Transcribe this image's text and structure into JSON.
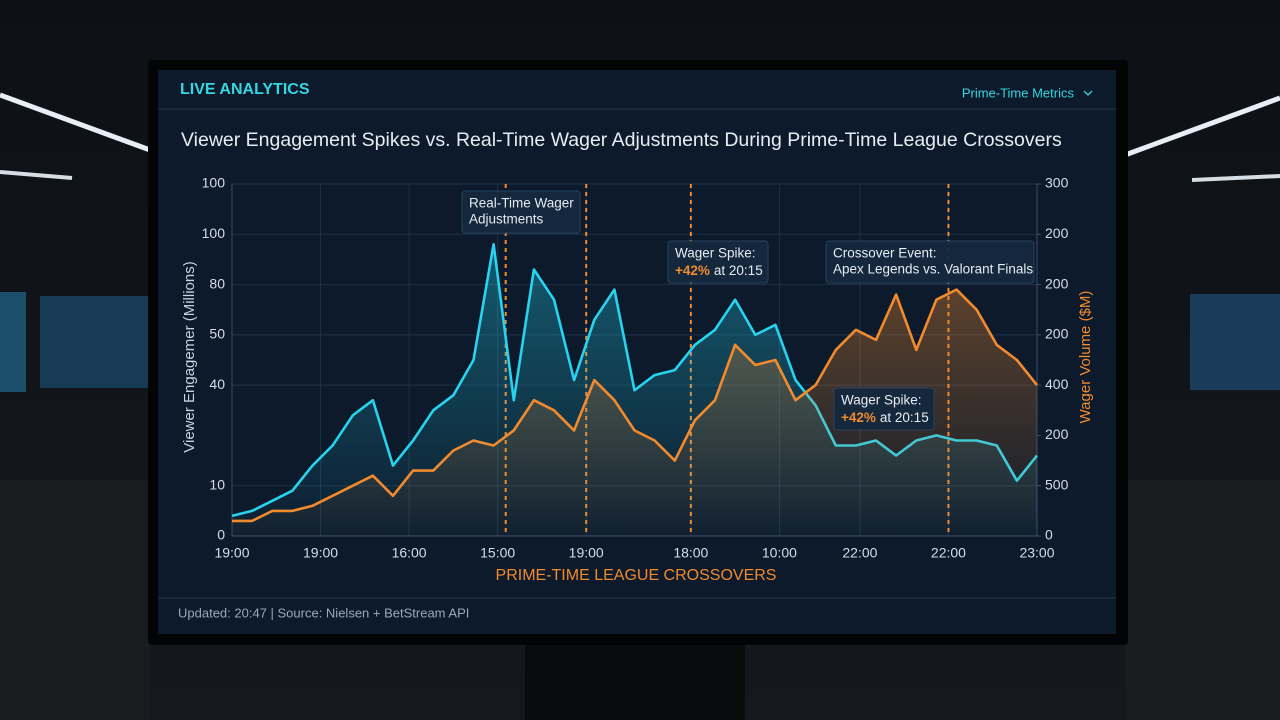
{
  "header": {
    "section": "LIVE ANALYTICS",
    "menu": "Prime-Time Metrics"
  },
  "chart_data": {
    "type": "line",
    "title": "Viewer Engagement Spikes vs. Real-Time Wager Adjustments During Prime-Time League Crossovers",
    "xlabel": "PRIME-TIME LEAGUE CROSSOVERS",
    "ylabel": "Viewer Engagemer (Millions)",
    "y2label": "Wager Volume ($M)",
    "x": [
      0,
      2.5,
      5,
      7.5,
      10,
      12.5,
      15,
      17.5,
      20,
      22.5,
      25,
      27.5,
      30,
      32.5,
      35,
      37.5,
      40,
      42.5,
      45,
      47.5,
      50,
      52.5,
      55,
      57.5,
      60,
      62.5,
      65,
      67.5,
      70,
      72.5,
      75,
      77.5,
      80,
      82.5,
      85,
      87.5,
      90,
      92.5,
      95,
      97.5,
      100
    ],
    "series": [
      {
        "color": "#27d3ef",
        "values": [
          4,
          5,
          7,
          9,
          14,
          18,
          24,
          27,
          14,
          19,
          25,
          28,
          35,
          58,
          27,
          53,
          47,
          31,
          43,
          49,
          29,
          32,
          33,
          38,
          41,
          47,
          40,
          42,
          31,
          26,
          18,
          18,
          19,
          16,
          19,
          20,
          19,
          19,
          18,
          11,
          16
        ]
      },
      {
        "color": "#f28a2e",
        "axis": "y2",
        "values": [
          3,
          3,
          5,
          5,
          6,
          8,
          10,
          12,
          8,
          13,
          13,
          17,
          19,
          18,
          21,
          27,
          25,
          21,
          31,
          27,
          21,
          19,
          15,
          23,
          27,
          38,
          34,
          35,
          27,
          30,
          37,
          41,
          39,
          48,
          37,
          47,
          49,
          45,
          38,
          35,
          30
        ]
      }
    ],
    "xlim": [
      0,
      100
    ],
    "xticks": [
      {
        "value": 0,
        "label": "19:00"
      },
      {
        "value": 11,
        "label": "19:00"
      },
      {
        "value": 22,
        "label": "16:00"
      },
      {
        "value": 33,
        "label": "15:00"
      },
      {
        "value": 44,
        "label": "19:00"
      },
      {
        "value": 57,
        "label": "18:00"
      },
      {
        "value": 68,
        "label": "10:00"
      },
      {
        "value": 78,
        "label": "22:00"
      },
      {
        "value": 89,
        "label": "22:00"
      },
      {
        "value": 100,
        "label": "23:00"
      }
    ],
    "ylim": [
      0,
      70
    ],
    "yticks": [
      {
        "value": 70,
        "label": "100"
      },
      {
        "value": 60,
        "label": "100"
      },
      {
        "value": 50,
        "label": "80"
      },
      {
        "value": 40,
        "label": "50"
      },
      {
        "value": 30,
        "label": "40"
      },
      10,
      0
    ],
    "y2lim": [
      0,
      70
    ],
    "y2ticks": [
      {
        "value": 70,
        "label": "300"
      },
      {
        "value": 60,
        "label": "200"
      },
      {
        "value": 50,
        "label": "200"
      },
      {
        "value": 40,
        "label": "200"
      },
      {
        "value": 30,
        "label": "400"
      },
      {
        "value": 20,
        "label": "200"
      },
      {
        "value": 10,
        "label": "500"
      },
      0
    ],
    "grid": true,
    "event_x": [
      34,
      44,
      57,
      89
    ],
    "annotations": [
      {
        "lines": [
          "Real-Time Wager",
          "Adjustments"
        ]
      },
      {
        "label": "Wager Spike:",
        "highlight": "+42%",
        "rest": "at 20:15"
      },
      {
        "lines": [
          "Crossover Event:",
          "Apex Legends vs. Valorant Finals"
        ]
      },
      {
        "label": "Wager Spike:",
        "highlight": "+42%",
        "rest": "at 20:15"
      }
    ]
  },
  "footer": "Updated: 20:47 | Source: Nielsen + BetStream API"
}
